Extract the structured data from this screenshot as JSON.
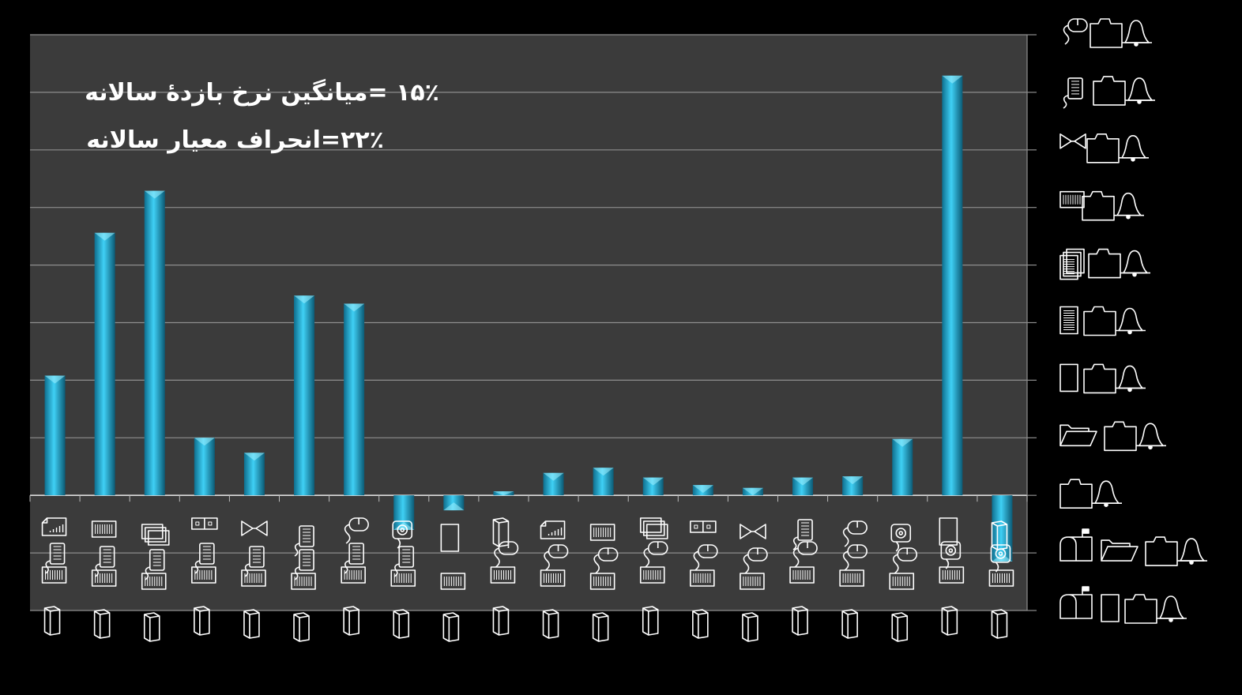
{
  "chart_data": {
    "type": "bar",
    "title": "",
    "xlabel": "",
    "ylabel": "",
    "ylim": [
      -20,
      80
    ],
    "ytick_step": 10,
    "grid": true,
    "annotations": [
      "۱۵٪ =میانگین نرخ بازدهٔ سالانه",
      "۲۲٪=انحراف معیار سالانه"
    ],
    "bar_color": "#29b6e0",
    "categories": [
      "file-keyboard-cabinet-folder",
      "cabinet-keyboard-cabinet-folder",
      "files-keyboard-cabinet-folder",
      "drive-keyboard-cabinet-folder",
      "hourglass-keyboard-cabinet-folder",
      "keyboard-keyboard-cabinet-folder",
      "mouse-keyboard-cabinet-folder",
      "disc-keyboard-cabinet-folder",
      "page-folder",
      "folder-cabinet-folder",
      "file-mouse-cabinet-folder",
      "cabinet-mouse-cabinet-folder",
      "files-mouse-cabinet-folder",
      "drive-mouse-cabinet-folder",
      "hourglass-mouse-cabinet-folder",
      "keyboard-mouse-cabinet-folder",
      "mouse-mouse-cabinet-folder",
      "disc-mouse-cabinet-folder",
      "page-disc-cabinet-folder",
      "folder-disc-cabinet-folder"
    ],
    "values": [
      20.8,
      45.6,
      52.9,
      10.0,
      7.4,
      34.7,
      33.3,
      -6.0,
      -2.6,
      0.7,
      3.9,
      4.8,
      3.1,
      1.8,
      1.3,
      3.1,
      3.3,
      9.8,
      72.9,
      -11.5
    ],
    "y_tick_icons": [
      [
        "mailbox-icon",
        "page-icon",
        "folder-icon",
        "bell-icon"
      ],
      [
        "mailbox-icon",
        "open-folder-icon",
        "folder-icon",
        "bell-icon"
      ],
      [
        "folder-icon",
        "bell-icon"
      ],
      [
        "open-folder-icon",
        "folder-icon",
        "bell-icon"
      ],
      [
        "page-icon",
        "folder-icon",
        "bell-icon"
      ],
      [
        "doc-icon",
        "folder-icon",
        "bell-icon"
      ],
      [
        "pages-icon",
        "folder-icon",
        "bell-icon"
      ],
      [
        "cabinet-icon",
        "folder-icon",
        "bell-icon"
      ],
      [
        "hourglass-icon",
        "folder-icon",
        "bell-icon"
      ],
      [
        "keyboard-icon",
        "folder-icon",
        "bell-icon"
      ],
      [
        "mouse-icon",
        "folder-icon",
        "bell-icon"
      ]
    ],
    "x_tick_icons": [
      [
        "chart-doc-icon",
        "keyboard-icon",
        "cabinet-icon",
        "folder-icon"
      ],
      [
        "cabinet-icon",
        "keyboard-icon",
        "cabinet-icon",
        "folder-icon"
      ],
      [
        "files-icon",
        "keyboard-icon",
        "cabinet-icon",
        "folder-icon"
      ],
      [
        "drive-icon",
        "keyboard-icon",
        "cabinet-icon",
        "folder-icon"
      ],
      [
        "hourglass-icon",
        "keyboard-icon",
        "cabinet-icon",
        "folder-icon"
      ],
      [
        "keyboard-icon",
        "keyboard-icon",
        "cabinet-icon",
        "folder-icon"
      ],
      [
        "mouse-icon",
        "keyboard-icon",
        "cabinet-icon",
        "folder-icon"
      ],
      [
        "disc-icon",
        "keyboard-icon",
        "cabinet-icon",
        "folder-icon"
      ],
      [
        "page-icon",
        "cabinet-icon",
        "folder-icon"
      ],
      [
        "folder-icon",
        "mouse-icon",
        "cabinet-icon",
        "folder-icon"
      ],
      [
        "chart-doc-icon",
        "mouse-icon",
        "cabinet-icon",
        "folder-icon"
      ],
      [
        "cabinet-icon",
        "mouse-icon",
        "cabinet-icon",
        "folder-icon"
      ],
      [
        "files-icon",
        "mouse-icon",
        "cabinet-icon",
        "folder-icon"
      ],
      [
        "drive-icon",
        "mouse-icon",
        "cabinet-icon",
        "folder-icon"
      ],
      [
        "hourglass-icon",
        "mouse-icon",
        "cabinet-icon",
        "folder-icon"
      ],
      [
        "keyboard-icon",
        "mouse-icon",
        "cabinet-icon",
        "folder-icon"
      ],
      [
        "mouse-icon",
        "mouse-icon",
        "cabinet-icon",
        "folder-icon"
      ],
      [
        "disc-icon",
        "mouse-icon",
        "cabinet-icon",
        "folder-icon"
      ],
      [
        "page-icon",
        "disc-icon",
        "cabinet-icon",
        "folder-icon"
      ],
      [
        "folder-icon",
        "disc-icon",
        "cabinet-icon",
        "folder-icon"
      ]
    ]
  }
}
